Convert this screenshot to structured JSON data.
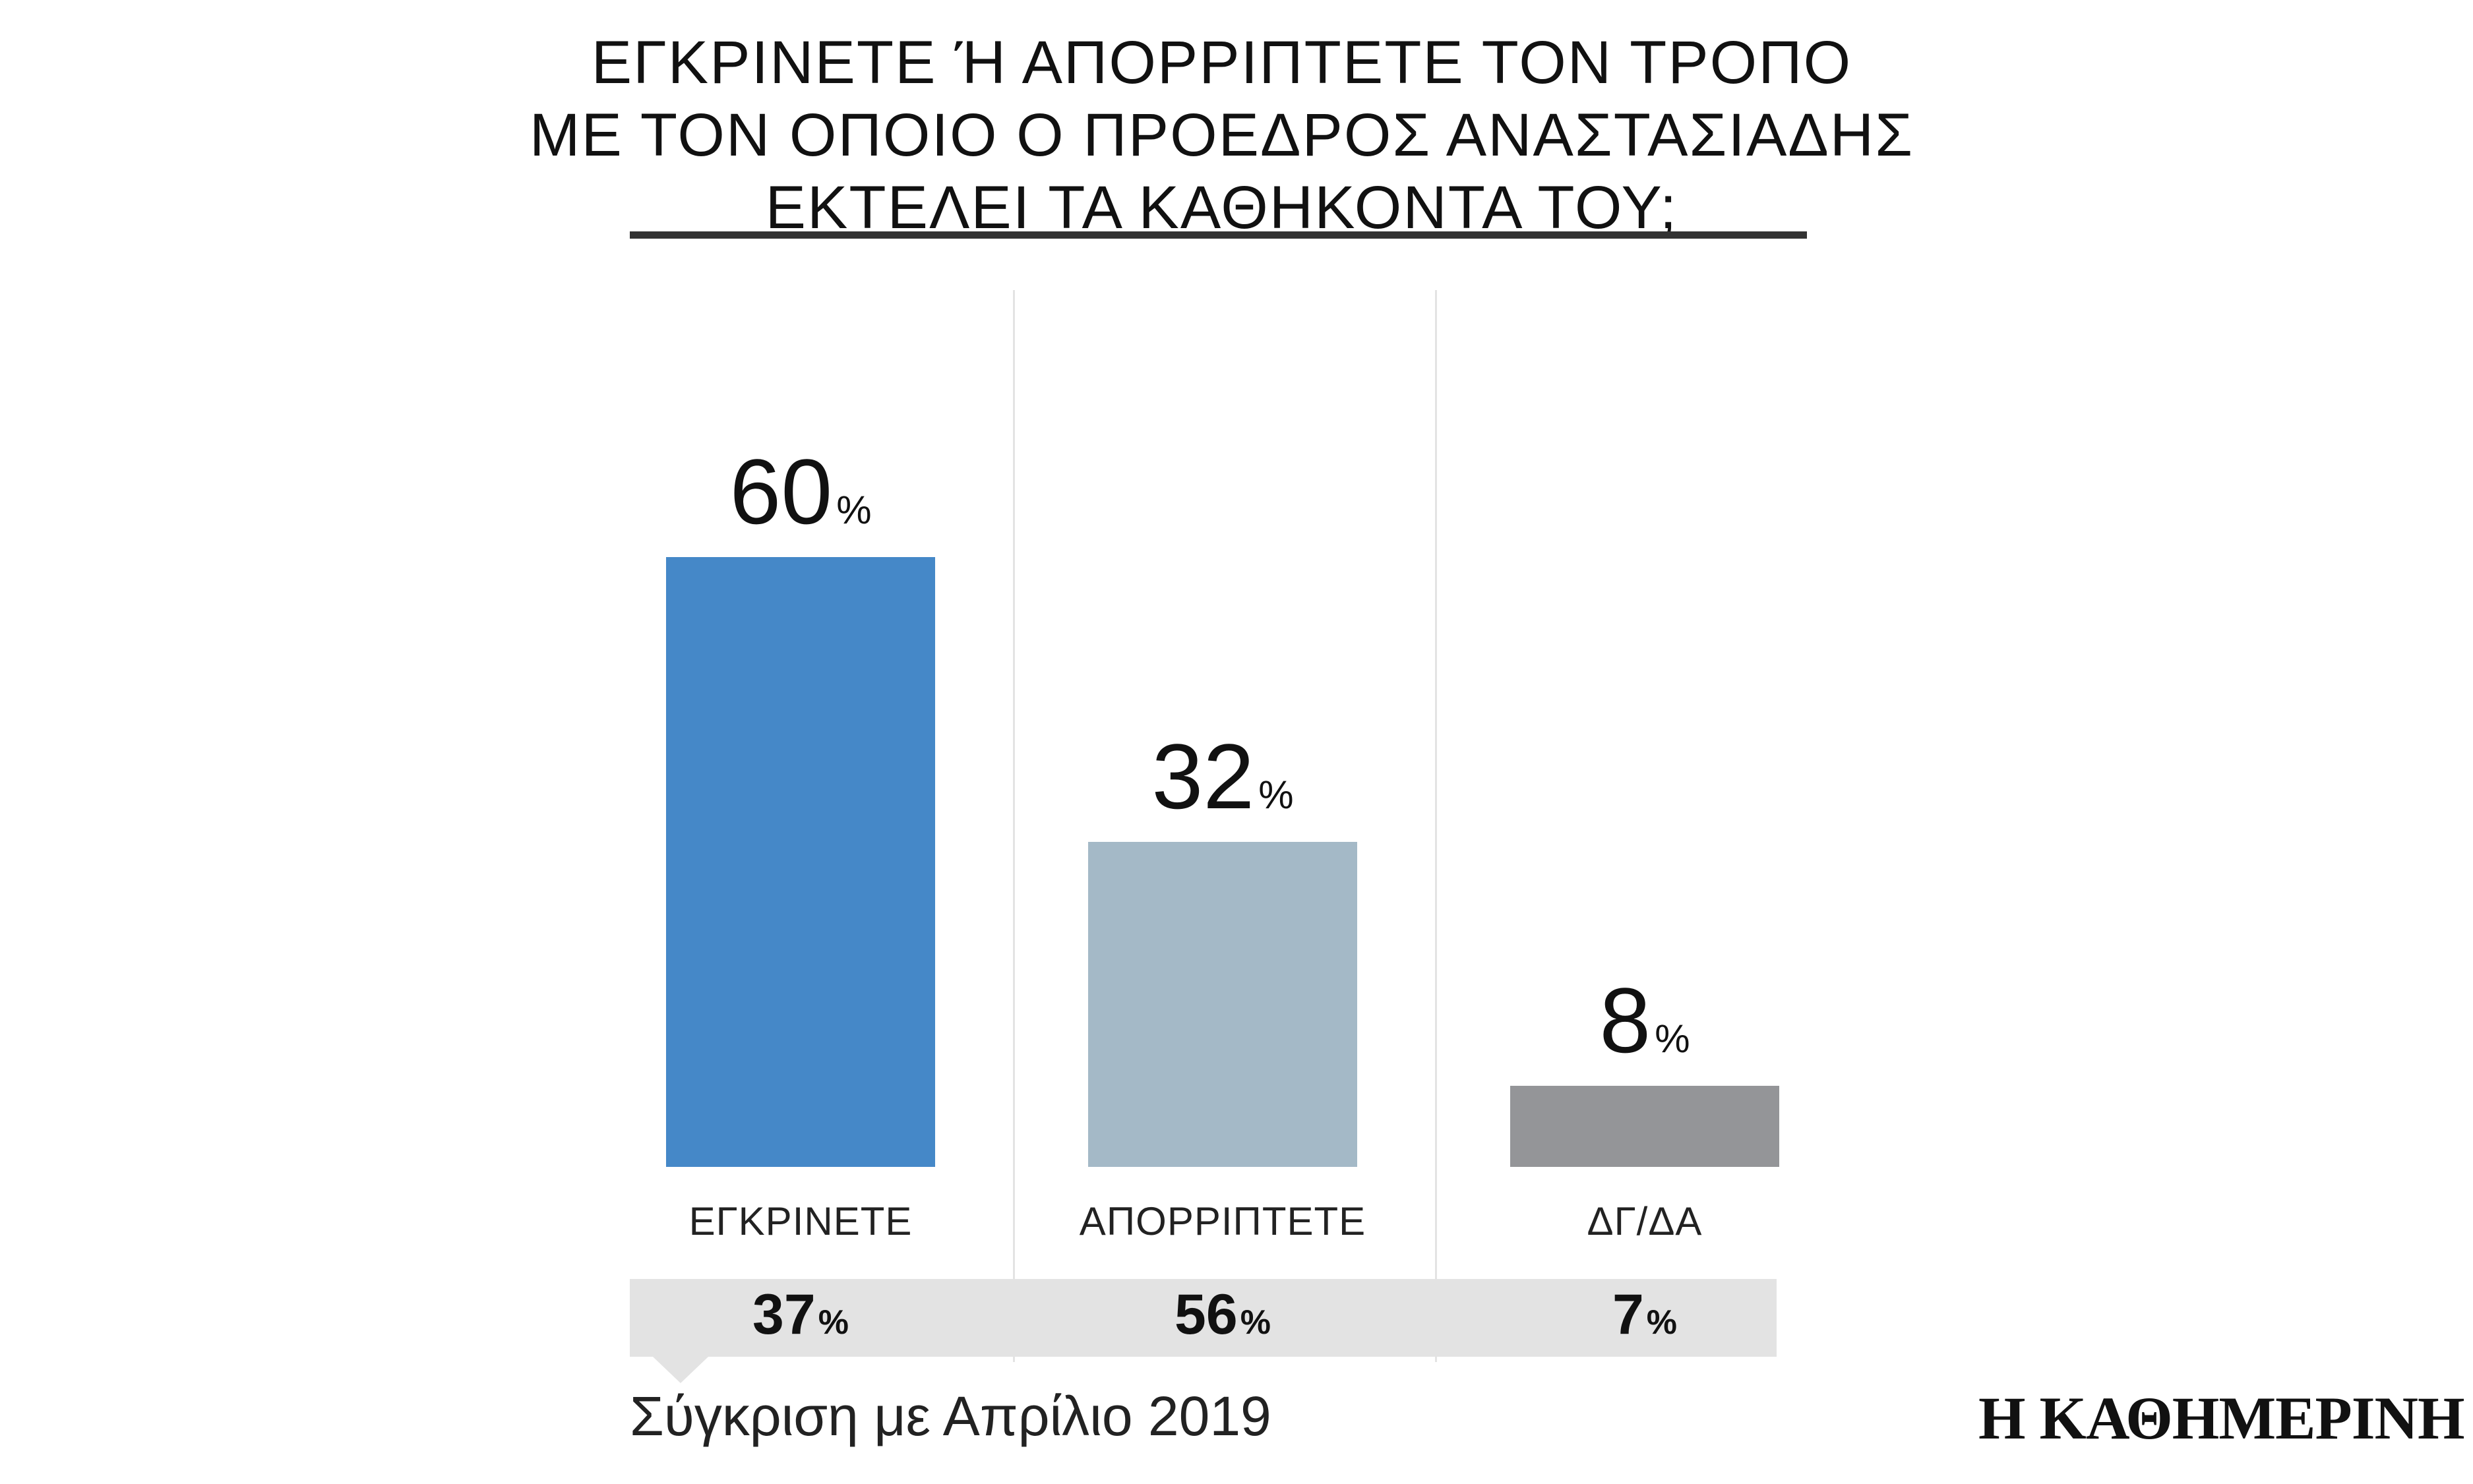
{
  "title_lines": [
    "ΕΓΚΡΙΝΕΤΕ Ή ΑΠΟΡΡΙΠΤΕΤΕ ΤΟΝ ΤΡΟΠΟ",
    "ΜΕ ΤΟΝ ΟΠΟΙΟ Ο ΠΡΟΕΔΡΟΣ ΑΝΑΣΤΑΣΙΑΔΗΣ",
    "ΕΚΤΕΛΕΙ ΤΑ ΚΑΘΗΚΟΝΤΑ ΤΟΥ;"
  ],
  "percent_symbol": "%",
  "chart_data": {
    "type": "bar",
    "title": "ΕΓΚΡΙΝΕΤΕ Ή ΑΠΟΡΡΙΠΤΕΤΕ ΤΟΝ ΤΡΟΠΟ ΜΕ ΤΟΝ ΟΠΟΙΟ Ο ΠΡΟΕΔΡΟΣ ΑΝΑΣΤΑΣΙΑΔΗΣ ΕΚΤΕΛΕΙ ΤΑ ΚΑΘΗΚΟΝΤΑ ΤΟΥ;",
    "categories": [
      "ΕΓΚΡΙΝΕΤΕ",
      "ΑΠΟΡΡΙΠΤΕΤΕ",
      "ΔΓ/ΔΑ"
    ],
    "values": [
      60,
      32,
      8
    ],
    "value_labels": [
      "60",
      "32",
      "8"
    ],
    "colors": [
      "#4588c8",
      "#a4b9c7",
      "#949598"
    ],
    "unit": "%",
    "ylim": [
      0,
      60
    ],
    "grid": false,
    "legend": "none",
    "comparison": {
      "label": "Σύγκριση με Απρίλιο 2019",
      "values": [
        37,
        56,
        7
      ],
      "value_labels": [
        "37",
        "56",
        "7"
      ]
    }
  },
  "brand": "Η ΚΑΘΗΜΕΡΙΝΗ"
}
